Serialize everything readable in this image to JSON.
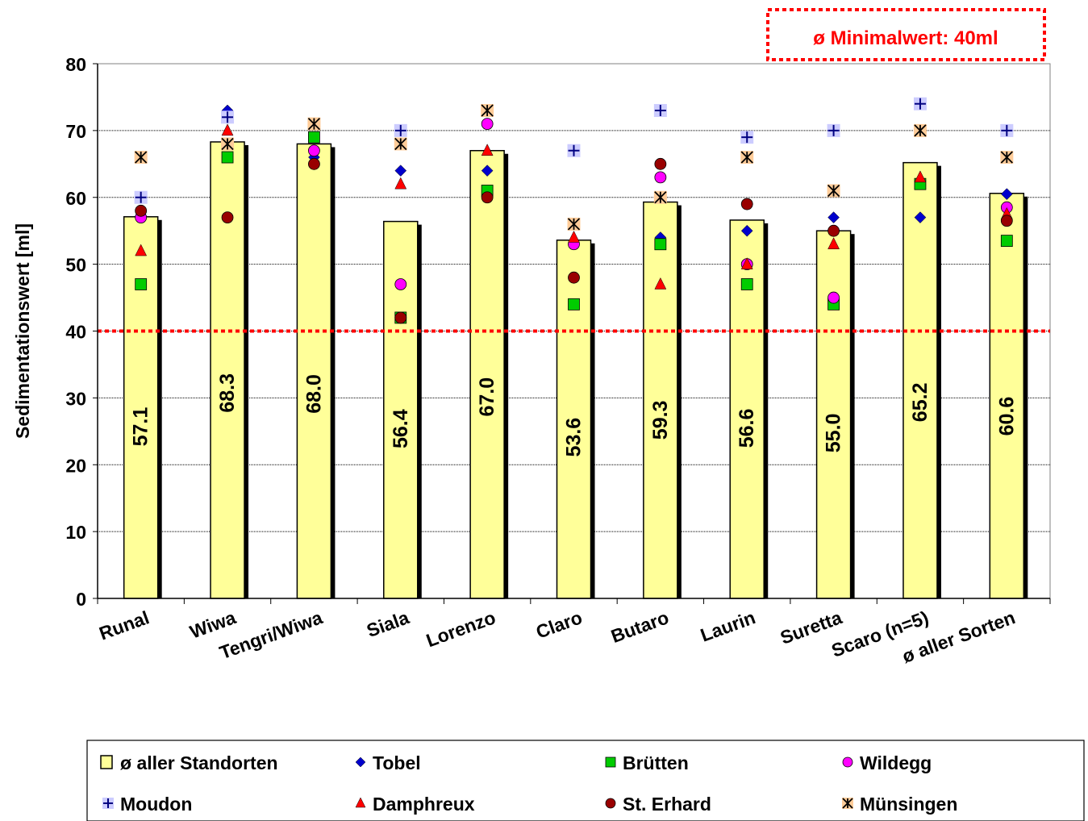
{
  "annotation": "ø Minimalwert: 40ml",
  "chart_data": {
    "type": "bar",
    "title": "",
    "xlabel": "",
    "ylabel": "Sedimentationswert [ml]",
    "ylim": [
      0,
      80
    ],
    "yticks": [
      0,
      10,
      20,
      30,
      40,
      50,
      60,
      70,
      80
    ],
    "grid": true,
    "threshold": 40,
    "categories": [
      "Runal",
      "Wiwa",
      "Tengri/Wiwa",
      "Siala",
      "Lorenzo",
      "Claro",
      "Butaro",
      "Laurin",
      "Suretta",
      "Scaro (n=5)",
      "ø aller Sorten"
    ],
    "bar_series": {
      "name": "ø aller Standorten",
      "values": [
        57.1,
        68.3,
        68.0,
        56.4,
        67.0,
        53.6,
        59.3,
        56.6,
        55.0,
        65.2,
        60.6
      ],
      "labels": [
        "57.1",
        "68.3",
        "68.0",
        "56.4",
        "67.0",
        "53.6",
        "59.3",
        "56.6",
        "55.0",
        "65.2",
        "60.6"
      ],
      "color": "#ffff99"
    },
    "series": [
      {
        "name": "Tobel",
        "marker": "diamond",
        "color": "#0000cc",
        "values": [
          null,
          73,
          66,
          64,
          64,
          null,
          54,
          55,
          57,
          57,
          60.5
        ]
      },
      {
        "name": "Brütten",
        "marker": "square",
        "color": "#00cc00",
        "values": [
          47,
          66,
          69,
          42,
          61,
          44,
          53,
          47,
          44,
          62,
          53.5
        ]
      },
      {
        "name": "Wildegg",
        "marker": "circle",
        "color": "#ff00ff",
        "values": [
          57,
          null,
          67,
          47,
          71,
          53,
          63,
          50,
          45,
          null,
          58.5
        ]
      },
      {
        "name": "Moudon",
        "marker": "plus",
        "color": "#8888ff",
        "values": [
          60,
          72,
          null,
          70,
          null,
          67,
          73,
          69,
          70,
          74,
          70
        ]
      },
      {
        "name": "Damphreux",
        "marker": "triangle",
        "color": "#ff0000",
        "values": [
          52,
          70,
          null,
          62,
          67,
          54,
          47,
          50,
          53,
          63,
          57.5
        ]
      },
      {
        "name": "St. Erhard",
        "marker": "circle",
        "color": "#990000",
        "values": [
          58,
          57,
          65,
          42,
          60,
          48,
          65,
          59,
          55,
          null,
          56.5
        ]
      },
      {
        "name": "Münsingen",
        "marker": "asterisk",
        "color": "#cc6600",
        "values": [
          66,
          68,
          71,
          68,
          73,
          56,
          60,
          66,
          61,
          70,
          66
        ]
      }
    ],
    "legend": {
      "position": "bottom",
      "items": [
        "ø aller Standorten",
        "Tobel",
        "Brütten",
        "Wildegg",
        "Moudon",
        "Damphreux",
        "St. Erhard",
        "Münsingen"
      ]
    }
  }
}
